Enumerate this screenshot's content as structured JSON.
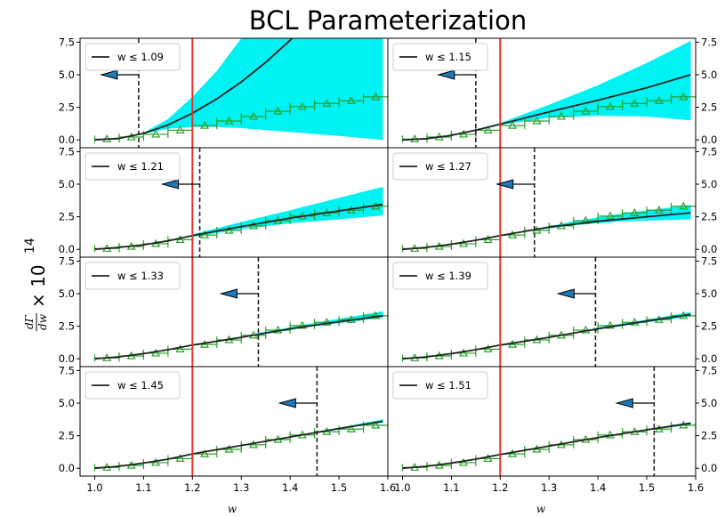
{
  "figure": {
    "title": "BCL Parameterization",
    "ylabel": "dΓ/dw × 10¹⁴",
    "ylabel_frac_num": "dΓ",
    "ylabel_frac_den": "dw",
    "ylabel_times": "× 10",
    "ylabel_exp": "14",
    "xlabel": "w"
  },
  "chart_data": {
    "type": "line",
    "title": "BCL Parameterization",
    "xlabel": "w",
    "ylabel": "dΓ/dw × 10¹⁴",
    "xlim": [
      0.97,
      1.6
    ],
    "ylim": [
      -0.6,
      7.8
    ],
    "xticks": [
      "1.0",
      "1.1",
      "1.2",
      "1.3",
      "1.4",
      "1.5",
      "1.6"
    ],
    "yticks": [
      "0.0",
      "2.5",
      "5.0",
      "7.5"
    ],
    "fit_boundary_w": 1.2,
    "colors": {
      "fit_line": "#222222",
      "band": "#00f2f2",
      "data": "#2ca02c",
      "cut_line": "#e8312c",
      "arrow": "#1f77b4"
    },
    "data_points": {
      "x": [
        1.025,
        1.075,
        1.125,
        1.175,
        1.225,
        1.275,
        1.325,
        1.375,
        1.425,
        1.475,
        1.525,
        1.575
      ],
      "y": [
        0.06,
        0.22,
        0.43,
        0.74,
        1.1,
        1.45,
        1.8,
        2.2,
        2.55,
        2.8,
        3.0,
        3.3
      ]
    },
    "panels": [
      {
        "legend": "w ≤ 1.09",
        "wmax": 1.09,
        "fit": [
          [
            1.0,
            0.0
          ],
          [
            1.05,
            0.12
          ],
          [
            1.1,
            0.5
          ],
          [
            1.15,
            1.15
          ],
          [
            1.2,
            2.05
          ],
          [
            1.25,
            3.15
          ],
          [
            1.3,
            4.45
          ],
          [
            1.35,
            5.95
          ],
          [
            1.4,
            7.65
          ],
          [
            1.42,
            8.4
          ]
        ],
        "band_upper": [
          [
            1.1,
            0.55
          ],
          [
            1.15,
            1.6
          ],
          [
            1.2,
            3.3
          ],
          [
            1.25,
            5.3
          ],
          [
            1.3,
            7.8
          ],
          [
            1.59,
            7.8
          ]
        ],
        "band_lower": [
          [
            1.1,
            0.45
          ],
          [
            1.15,
            0.85
          ],
          [
            1.2,
            1.0
          ],
          [
            1.25,
            1.0
          ],
          [
            1.3,
            0.9
          ],
          [
            1.4,
            0.6
          ],
          [
            1.5,
            0.3
          ],
          [
            1.59,
            0.0
          ]
        ]
      },
      {
        "legend": "w ≤ 1.15",
        "wmax": 1.15,
        "fit": [
          [
            1.0,
            0.0
          ],
          [
            1.05,
            0.1
          ],
          [
            1.1,
            0.35
          ],
          [
            1.15,
            0.75
          ],
          [
            1.2,
            1.2
          ],
          [
            1.3,
            2.15
          ],
          [
            1.4,
            3.05
          ],
          [
            1.5,
            4.0
          ],
          [
            1.59,
            5.0
          ]
        ],
        "band_upper": [
          [
            1.15,
            0.8
          ],
          [
            1.2,
            1.3
          ],
          [
            1.3,
            2.7
          ],
          [
            1.4,
            4.2
          ],
          [
            1.5,
            5.9
          ],
          [
            1.59,
            7.6
          ]
        ],
        "band_lower": [
          [
            1.15,
            0.7
          ],
          [
            1.2,
            1.15
          ],
          [
            1.3,
            1.7
          ],
          [
            1.4,
            1.85
          ],
          [
            1.5,
            1.8
          ],
          [
            1.59,
            1.5
          ]
        ]
      },
      {
        "legend": "w ≤ 1.21",
        "wmax": 1.215,
        "fit": [
          [
            1.0,
            0.0
          ],
          [
            1.05,
            0.15
          ],
          [
            1.1,
            0.35
          ],
          [
            1.15,
            0.65
          ],
          [
            1.2,
            1.05
          ],
          [
            1.3,
            1.75
          ],
          [
            1.4,
            2.4
          ],
          [
            1.5,
            2.95
          ],
          [
            1.59,
            3.45
          ]
        ],
        "band_upper": [
          [
            1.2,
            1.15
          ],
          [
            1.3,
            2.1
          ],
          [
            1.4,
            3.0
          ],
          [
            1.5,
            3.95
          ],
          [
            1.59,
            4.8
          ]
        ],
        "band_lower": [
          [
            1.2,
            0.95
          ],
          [
            1.3,
            1.55
          ],
          [
            1.4,
            2.0
          ],
          [
            1.5,
            2.3
          ],
          [
            1.59,
            2.6
          ]
        ]
      },
      {
        "legend": "w ≤ 1.27",
        "wmax": 1.27,
        "fit": [
          [
            1.0,
            0.0
          ],
          [
            1.05,
            0.15
          ],
          [
            1.1,
            0.4
          ],
          [
            1.15,
            0.7
          ],
          [
            1.2,
            1.05
          ],
          [
            1.3,
            1.7
          ],
          [
            1.4,
            2.15
          ],
          [
            1.5,
            2.5
          ],
          [
            1.59,
            2.8
          ]
        ],
        "band_upper": [
          [
            1.27,
            1.55
          ],
          [
            1.35,
            2.15
          ],
          [
            1.45,
            2.75
          ],
          [
            1.59,
            3.4
          ]
        ],
        "band_lower": [
          [
            1.27,
            1.45
          ],
          [
            1.35,
            1.85
          ],
          [
            1.45,
            2.15
          ],
          [
            1.59,
            2.3
          ]
        ]
      },
      {
        "legend": "w ≤ 1.33",
        "wmax": 1.335,
        "fit": [
          [
            1.0,
            0.0
          ],
          [
            1.05,
            0.15
          ],
          [
            1.1,
            0.4
          ],
          [
            1.15,
            0.7
          ],
          [
            1.2,
            1.05
          ],
          [
            1.3,
            1.65
          ],
          [
            1.4,
            2.3
          ],
          [
            1.5,
            2.85
          ],
          [
            1.59,
            3.3
          ]
        ],
        "band_upper": [
          [
            1.33,
            1.95
          ],
          [
            1.45,
            2.75
          ],
          [
            1.59,
            3.65
          ]
        ],
        "band_lower": [
          [
            1.33,
            1.8
          ],
          [
            1.45,
            2.5
          ],
          [
            1.59,
            3.15
          ]
        ]
      },
      {
        "legend": "w ≤ 1.39",
        "wmax": 1.395,
        "fit": [
          [
            1.0,
            0.0
          ],
          [
            1.05,
            0.15
          ],
          [
            1.1,
            0.4
          ],
          [
            1.15,
            0.7
          ],
          [
            1.2,
            1.05
          ],
          [
            1.3,
            1.65
          ],
          [
            1.4,
            2.3
          ],
          [
            1.5,
            2.9
          ],
          [
            1.59,
            3.4
          ]
        ],
        "band_upper": [
          [
            1.39,
            2.35
          ],
          [
            1.5,
            3.0
          ],
          [
            1.59,
            3.6
          ]
        ],
        "band_lower": [
          [
            1.39,
            2.2
          ],
          [
            1.5,
            2.8
          ],
          [
            1.59,
            3.25
          ]
        ]
      },
      {
        "legend": "w ≤ 1.45",
        "wmax": 1.455,
        "fit": [
          [
            1.0,
            0.0
          ],
          [
            1.05,
            0.15
          ],
          [
            1.1,
            0.4
          ],
          [
            1.15,
            0.7
          ],
          [
            1.2,
            1.1
          ],
          [
            1.3,
            1.75
          ],
          [
            1.4,
            2.4
          ],
          [
            1.5,
            3.05
          ],
          [
            1.59,
            3.6
          ]
        ],
        "band_upper": [
          [
            1.45,
            2.8
          ],
          [
            1.52,
            3.25
          ],
          [
            1.59,
            3.75
          ]
        ],
        "band_lower": [
          [
            1.45,
            2.7
          ],
          [
            1.52,
            3.1
          ],
          [
            1.59,
            3.5
          ]
        ]
      },
      {
        "legend": "w ≤ 1.51",
        "wmax": 1.515,
        "fit": [
          [
            1.0,
            0.0
          ],
          [
            1.05,
            0.15
          ],
          [
            1.1,
            0.4
          ],
          [
            1.15,
            0.7
          ],
          [
            1.2,
            1.05
          ],
          [
            1.3,
            1.7
          ],
          [
            1.4,
            2.35
          ],
          [
            1.5,
            2.95
          ],
          [
            1.59,
            3.45
          ]
        ],
        "band_upper": [
          [
            1.51,
            3.05
          ],
          [
            1.55,
            3.3
          ],
          [
            1.59,
            3.55
          ]
        ],
        "band_lower": [
          [
            1.51,
            2.95
          ],
          [
            1.55,
            3.15
          ],
          [
            1.59,
            3.35
          ]
        ]
      }
    ]
  }
}
